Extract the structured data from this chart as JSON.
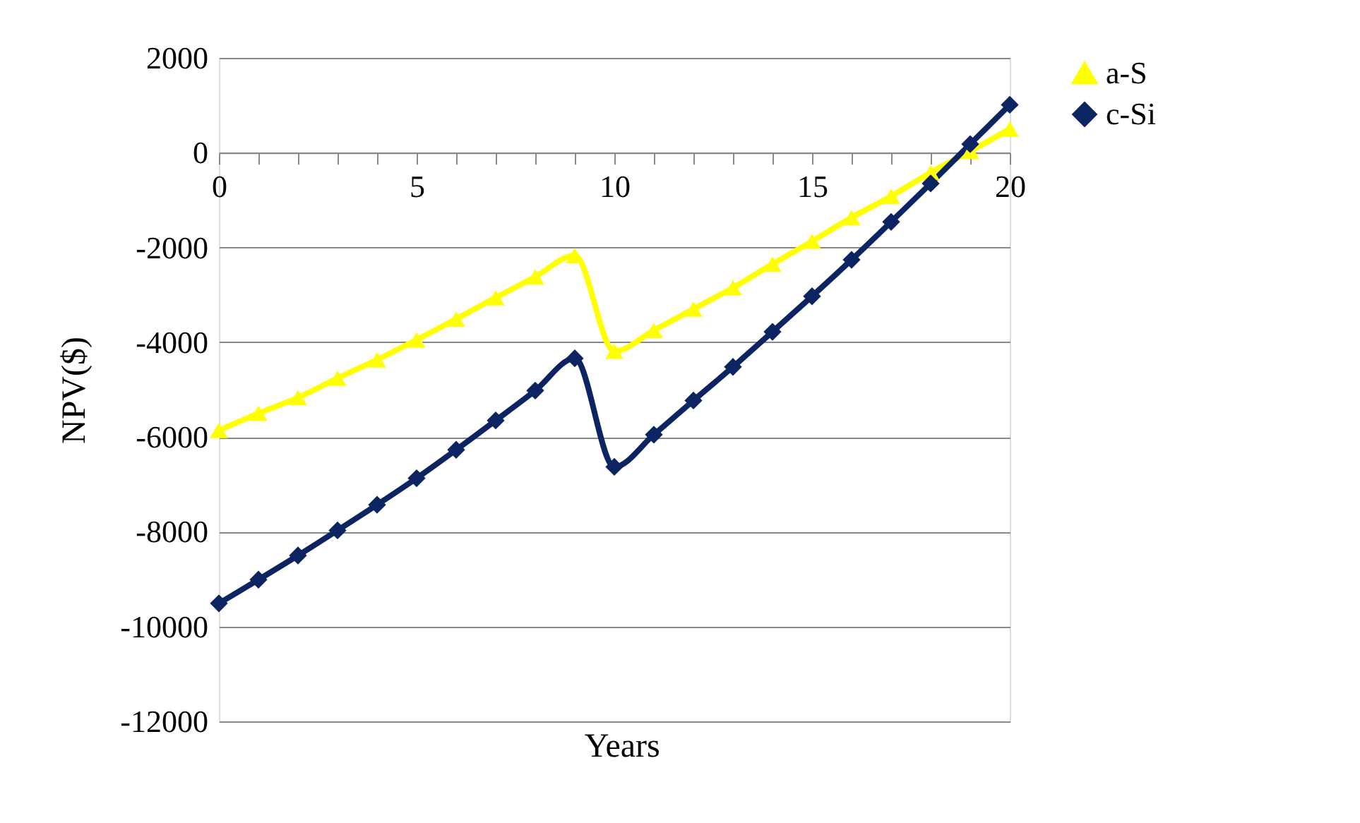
{
  "chart_data": {
    "type": "line",
    "xlabel": "Years",
    "ylabel": "NPV($)",
    "x": [
      0,
      1,
      2,
      3,
      4,
      5,
      6,
      7,
      8,
      9,
      10,
      11,
      12,
      13,
      14,
      15,
      16,
      17,
      18,
      19,
      20
    ],
    "series": [
      {
        "name": "a-S",
        "color": "#ffff00",
        "marker": "triangle",
        "values": [
          -5860,
          -5500,
          -5170,
          -4760,
          -4370,
          -3950,
          -3510,
          -3060,
          -2620,
          -2170,
          -4190,
          -3750,
          -3300,
          -2850,
          -2350,
          -1870,
          -1370,
          -920,
          -420,
          30,
          500
        ]
      },
      {
        "name": "c-Si",
        "color": "#0c2461",
        "marker": "diamond",
        "values": [
          -9510,
          -9010,
          -8500,
          -7970,
          -7430,
          -6870,
          -6270,
          -5650,
          -5020,
          -4340,
          -6630,
          -5950,
          -5230,
          -4520,
          -3780,
          -3030,
          -2260,
          -1460,
          -650,
          180,
          1010
        ]
      }
    ],
    "xlim": [
      0,
      20
    ],
    "xticks": [
      0,
      {
        "value": 1,
        "label": null
      },
      {
        "value": 2,
        "label": null
      },
      {
        "value": 3,
        "label": null
      },
      {
        "value": 4,
        "label": null
      },
      5,
      {
        "value": 6,
        "label": null
      },
      {
        "value": 7,
        "label": null
      },
      {
        "value": 8,
        "label": null
      },
      {
        "value": 9,
        "label": null
      },
      10,
      {
        "value": 11,
        "label": null
      },
      {
        "value": 12,
        "label": null
      },
      {
        "value": 13,
        "label": null
      },
      {
        "value": 14,
        "label": null
      },
      15,
      {
        "value": 16,
        "label": null
      },
      {
        "value": 17,
        "label": null
      },
      {
        "value": 18,
        "label": null
      },
      {
        "value": 19,
        "label": null
      },
      20
    ],
    "ylim": [
      -12000,
      2000
    ],
    "yticks": [
      -12000,
      -10000,
      -8000,
      -6000,
      -4000,
      -2000,
      0,
      2000
    ],
    "grid": "y",
    "legend": "right",
    "line_style": "solid"
  }
}
